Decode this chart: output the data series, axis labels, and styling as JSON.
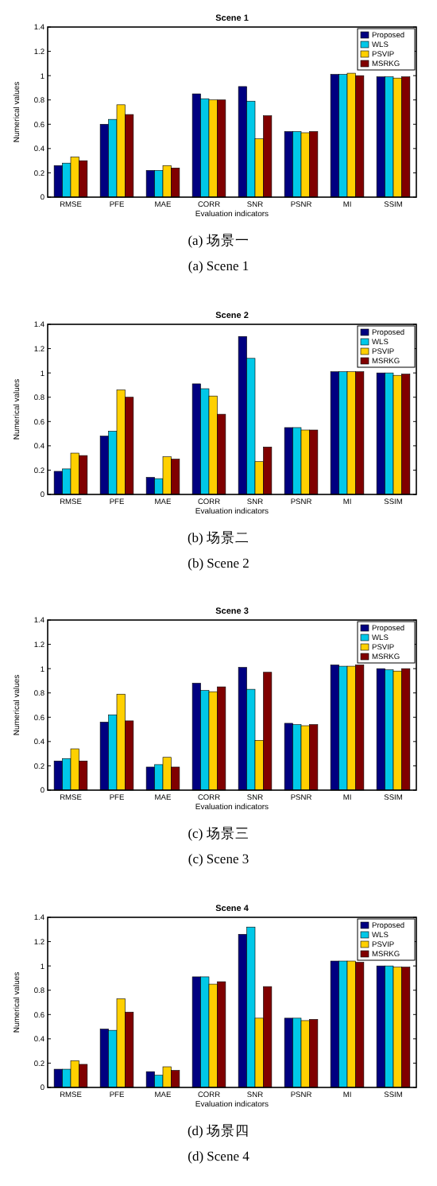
{
  "chart_data": [
    {
      "type": "bar",
      "title": "Scene 1",
      "xlabel": "Evaluation indicators",
      "ylabel": "Numerical values",
      "categories": [
        "RMSE",
        "PFE",
        "MAE",
        "CORR",
        "SNR",
        "PSNR",
        "MI",
        "SSIM"
      ],
      "series": [
        {
          "name": "Proposed",
          "color": "#000080",
          "values": [
            0.26,
            0.6,
            0.22,
            0.85,
            0.91,
            0.54,
            1.01,
            0.99
          ]
        },
        {
          "name": "WLS",
          "color": "#00c8e8",
          "values": [
            0.28,
            0.64,
            0.22,
            0.81,
            0.79,
            0.54,
            1.01,
            0.99
          ]
        },
        {
          "name": "PSVIP",
          "color": "#ffd000",
          "values": [
            0.33,
            0.76,
            0.26,
            0.8,
            0.48,
            0.53,
            1.02,
            0.98
          ]
        },
        {
          "name": "MSRKG",
          "color": "#800000",
          "values": [
            0.3,
            0.68,
            0.24,
            0.8,
            0.67,
            0.54,
            1.0,
            0.99
          ]
        }
      ],
      "ylim": [
        0,
        1.4
      ],
      "yticks": [
        0,
        0.2,
        0.4,
        0.6,
        0.8,
        1,
        1.2,
        1.4
      ],
      "legend": "top right",
      "annotations": [
        "(a) 场景一",
        "(a) Scene 1"
      ]
    },
    {
      "type": "bar",
      "title": "Scene 2",
      "xlabel": "Evaluation indicators",
      "ylabel": "Numerical values",
      "categories": [
        "RMSE",
        "PFE",
        "MAE",
        "CORR",
        "SNR",
        "PSNR",
        "MI",
        "SSIM"
      ],
      "series": [
        {
          "name": "Proposed",
          "color": "#000080",
          "values": [
            0.19,
            0.48,
            0.14,
            0.91,
            1.3,
            0.55,
            1.01,
            1.0
          ]
        },
        {
          "name": "WLS",
          "color": "#00c8e8",
          "values": [
            0.21,
            0.52,
            0.13,
            0.87,
            1.12,
            0.55,
            1.01,
            1.0
          ]
        },
        {
          "name": "PSVIP",
          "color": "#ffd000",
          "values": [
            0.34,
            0.86,
            0.31,
            0.81,
            0.27,
            0.53,
            1.01,
            0.98
          ]
        },
        {
          "name": "MSRKG",
          "color": "#800000",
          "values": [
            0.32,
            0.8,
            0.29,
            0.66,
            0.39,
            0.53,
            1.01,
            0.99
          ]
        }
      ],
      "ylim": [
        0,
        1.4
      ],
      "yticks": [
        0,
        0.2,
        0.4,
        0.6,
        0.8,
        1,
        1.2,
        1.4
      ],
      "legend": "top right",
      "annotations": [
        "(b) 场景二",
        "(b) Scene 2"
      ]
    },
    {
      "type": "bar",
      "title": "Scene 3",
      "xlabel": "Evaluation indicators",
      "ylabel": "Numerical values",
      "categories": [
        "RMSE",
        "PFE",
        "MAE",
        "CORR",
        "SNR",
        "PSNR",
        "MI",
        "SSIM"
      ],
      "series": [
        {
          "name": "Proposed",
          "color": "#000080",
          "values": [
            0.24,
            0.56,
            0.19,
            0.88,
            1.01,
            0.55,
            1.03,
            1.0
          ]
        },
        {
          "name": "WLS",
          "color": "#00c8e8",
          "values": [
            0.26,
            0.62,
            0.21,
            0.82,
            0.83,
            0.54,
            1.02,
            0.99
          ]
        },
        {
          "name": "PSVIP",
          "color": "#ffd000",
          "values": [
            0.34,
            0.79,
            0.27,
            0.81,
            0.41,
            0.53,
            1.02,
            0.98
          ]
        },
        {
          "name": "MSRKG",
          "color": "#800000",
          "values": [
            0.24,
            0.57,
            0.19,
            0.85,
            0.97,
            0.54,
            1.03,
            1.0
          ]
        }
      ],
      "ylim": [
        0,
        1.4
      ],
      "yticks": [
        0,
        0.2,
        0.4,
        0.6,
        0.8,
        1,
        1.2,
        1.4
      ],
      "legend": "top right",
      "annotations": [
        "(c) 场景三",
        "(c) Scene 3"
      ]
    },
    {
      "type": "bar",
      "title": "Scene 4",
      "xlabel": "Evaluation indicators",
      "ylabel": "Numerical values",
      "categories": [
        "RMSE",
        "PFE",
        "MAE",
        "CORR",
        "SNR",
        "PSNR",
        "MI",
        "SSIM"
      ],
      "series": [
        {
          "name": "Proposed",
          "color": "#000080",
          "values": [
            0.15,
            0.48,
            0.13,
            0.91,
            1.26,
            0.57,
            1.04,
            1.0
          ]
        },
        {
          "name": "WLS",
          "color": "#00c8e8",
          "values": [
            0.15,
            0.47,
            0.1,
            0.91,
            1.32,
            0.57,
            1.04,
            1.0
          ]
        },
        {
          "name": "PSVIP",
          "color": "#ffd000",
          "values": [
            0.22,
            0.73,
            0.17,
            0.85,
            0.57,
            0.55,
            1.04,
            0.99
          ]
        },
        {
          "name": "MSRKG",
          "color": "#800000",
          "values": [
            0.19,
            0.62,
            0.14,
            0.87,
            0.83,
            0.56,
            1.03,
            0.99
          ]
        }
      ],
      "ylim": [
        0,
        1.4
      ],
      "yticks": [
        0,
        0.2,
        0.4,
        0.6,
        0.8,
        1,
        1.2,
        1.4
      ],
      "legend": "top right",
      "annotations": [
        "(d) 场景四",
        "(d) Scene 4"
      ]
    }
  ]
}
